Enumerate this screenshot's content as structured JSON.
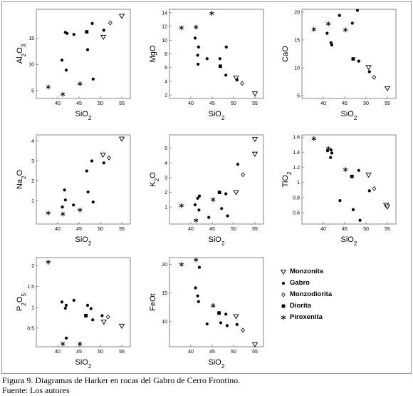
{
  "caption": {
    "figure": "Figura 9. Diagramas de Harker en rocas del Gabro de Cerro Frontino.",
    "source": "Fuente: Los autores"
  },
  "legend": {
    "items": [
      {
        "label": "Monzonita",
        "symbol": "triangle"
      },
      {
        "label": "Gabro",
        "symbol": "dot"
      },
      {
        "label": "Monzodiorita",
        "symbol": "diamond"
      },
      {
        "label": "Diorita",
        "symbol": "square"
      },
      {
        "label": "Piroxenita",
        "symbol": "asterisk"
      }
    ]
  },
  "chart_data": [
    {
      "type": "scatter",
      "xlabel": "SiO2",
      "ylabel": "Al2O3",
      "xlim": [
        35,
        57
      ],
      "xticks": [
        40,
        45,
        50,
        55
      ],
      "ylim": [
        3.5,
        20.5
      ],
      "yticks": [
        5,
        10,
        15
      ],
      "points": [
        {
          "x": 37.8,
          "y": 5.7,
          "s": "asterisk"
        },
        {
          "x": 41.2,
          "y": 4.3,
          "s": "asterisk"
        },
        {
          "x": 45.2,
          "y": 6.3,
          "s": "asterisk"
        },
        {
          "x": 41.0,
          "y": 10.8,
          "s": "dot"
        },
        {
          "x": 42.0,
          "y": 8.9,
          "s": "dot"
        },
        {
          "x": 41.8,
          "y": 16.1,
          "s": "dot"
        },
        {
          "x": 42.2,
          "y": 15.9,
          "s": "dot"
        },
        {
          "x": 43.8,
          "y": 15.7,
          "s": "dot"
        },
        {
          "x": 47.0,
          "y": 12.8,
          "s": "dot"
        },
        {
          "x": 48.3,
          "y": 7.2,
          "s": "dot"
        },
        {
          "x": 48.1,
          "y": 17.8,
          "s": "dot"
        },
        {
          "x": 46.8,
          "y": 16.2,
          "s": "square"
        },
        {
          "x": 50.8,
          "y": 16.5,
          "s": "dot"
        },
        {
          "x": 52.3,
          "y": 17.9,
          "s": "diamond"
        },
        {
          "x": 50.7,
          "y": 15.2,
          "s": "triangle"
        },
        {
          "x": 55.0,
          "y": 19.2,
          "s": "triangle"
        }
      ]
    },
    {
      "type": "scatter",
      "xlabel": "SiO2",
      "ylabel": "MgO",
      "xlim": [
        35,
        57
      ],
      "xticks": [
        40,
        45,
        50,
        55
      ],
      "ylim": [
        1.5,
        14.5
      ],
      "yticks": [
        2,
        4,
        6,
        8,
        10,
        12,
        14
      ],
      "points": [
        {
          "x": 37.8,
          "y": 11.8,
          "s": "asterisk"
        },
        {
          "x": 41.2,
          "y": 11.9,
          "s": "asterisk"
        },
        {
          "x": 44.9,
          "y": 13.9,
          "s": "asterisk"
        },
        {
          "x": 41.0,
          "y": 10.3,
          "s": "dot"
        },
        {
          "x": 41.8,
          "y": 9.0,
          "s": "dot"
        },
        {
          "x": 41.6,
          "y": 7.8,
          "s": "dot"
        },
        {
          "x": 41.7,
          "y": 6.5,
          "s": "dot"
        },
        {
          "x": 43.8,
          "y": 7.3,
          "s": "dot"
        },
        {
          "x": 46.8,
          "y": 7.3,
          "s": "dot"
        },
        {
          "x": 46.9,
          "y": 6.2,
          "s": "square"
        },
        {
          "x": 48.3,
          "y": 9.0,
          "s": "dot"
        },
        {
          "x": 48.2,
          "y": 4.9,
          "s": "dot"
        },
        {
          "x": 50.6,
          "y": 4.5,
          "s": "triangle"
        },
        {
          "x": 50.8,
          "y": 4.2,
          "s": "dot"
        },
        {
          "x": 52.0,
          "y": 3.7,
          "s": "diamond"
        },
        {
          "x": 55.0,
          "y": 2.2,
          "s": "triangle"
        }
      ]
    },
    {
      "type": "scatter",
      "xlabel": "SiO2",
      "ylabel": "CaO",
      "xlim": [
        35,
        57
      ],
      "xticks": [
        40,
        45,
        50,
        55
      ],
      "ylim": [
        4.5,
        20.5
      ],
      "yticks": [
        5,
        10,
        15,
        20
      ],
      "points": [
        {
          "x": 37.8,
          "y": 16.9,
          "s": "asterisk"
        },
        {
          "x": 41.2,
          "y": 17.9,
          "s": "asterisk"
        },
        {
          "x": 45.2,
          "y": 16.8,
          "s": "asterisk"
        },
        {
          "x": 40.9,
          "y": 16.2,
          "s": "dot"
        },
        {
          "x": 41.8,
          "y": 14.5,
          "s": "dot"
        },
        {
          "x": 42.0,
          "y": 14.1,
          "s": "dot"
        },
        {
          "x": 43.8,
          "y": 19.4,
          "s": "dot"
        },
        {
          "x": 46.8,
          "y": 18.0,
          "s": "dot"
        },
        {
          "x": 48.0,
          "y": 20.3,
          "s": "dot"
        },
        {
          "x": 47.0,
          "y": 11.6,
          "s": "square"
        },
        {
          "x": 48.3,
          "y": 11.2,
          "s": "dot"
        },
        {
          "x": 50.6,
          "y": 10.1,
          "s": "triangle"
        },
        {
          "x": 50.8,
          "y": 9.3,
          "s": "dot"
        },
        {
          "x": 51.9,
          "y": 8.3,
          "s": "diamond"
        },
        {
          "x": 55.0,
          "y": 6.3,
          "s": "triangle"
        }
      ]
    },
    {
      "type": "scatter",
      "xlabel": "SiO2",
      "ylabel": "Na2O",
      "xlim": [
        35,
        57
      ],
      "xticks": [
        40,
        45,
        50,
        55
      ],
      "ylim": [
        -0.15,
        4.3
      ],
      "yticks": [
        1,
        2,
        3,
        4
      ],
      "points": [
        {
          "x": 37.8,
          "y": 0.4,
          "s": "asterisk"
        },
        {
          "x": 41.2,
          "y": 0.35,
          "s": "asterisk"
        },
        {
          "x": 45.2,
          "y": 0.55,
          "s": "asterisk"
        },
        {
          "x": 41.1,
          "y": 0.7,
          "s": "dot"
        },
        {
          "x": 41.8,
          "y": 1.05,
          "s": "dot"
        },
        {
          "x": 41.6,
          "y": 1.55,
          "s": "dot"
        },
        {
          "x": 43.7,
          "y": 0.8,
          "s": "dot"
        },
        {
          "x": 46.8,
          "y": 2.5,
          "s": "dot"
        },
        {
          "x": 47.1,
          "y": 1.45,
          "s": "dot"
        },
        {
          "x": 48.3,
          "y": 0.95,
          "s": "dot"
        },
        {
          "x": 48.0,
          "y": 3.0,
          "s": "dot"
        },
        {
          "x": 50.6,
          "y": 3.3,
          "s": "triangle"
        },
        {
          "x": 50.8,
          "y": 2.9,
          "s": "dot"
        },
        {
          "x": 52.0,
          "y": 3.15,
          "s": "diamond"
        },
        {
          "x": 55.0,
          "y": 4.1,
          "s": "triangle"
        }
      ]
    },
    {
      "type": "scatter",
      "xlabel": "SiO2",
      "ylabel": "K2O",
      "xlim": [
        35,
        57
      ],
      "xticks": [
        40,
        45,
        50,
        55
      ],
      "ylim": [
        -0.15,
        5.9
      ],
      "yticks": [
        1,
        2,
        3,
        4,
        5
      ],
      "points": [
        {
          "x": 37.8,
          "y": 1.1,
          "s": "asterisk"
        },
        {
          "x": 41.2,
          "y": 0.1,
          "s": "asterisk"
        },
        {
          "x": 45.2,
          "y": 1.5,
          "s": "asterisk"
        },
        {
          "x": 41.0,
          "y": 1.15,
          "s": "dot"
        },
        {
          "x": 41.6,
          "y": 1.6,
          "s": "dot"
        },
        {
          "x": 42.0,
          "y": 1.75,
          "s": "dot"
        },
        {
          "x": 41.9,
          "y": 0.8,
          "s": "dot"
        },
        {
          "x": 44.2,
          "y": 0.3,
          "s": "dot"
        },
        {
          "x": 46.7,
          "y": 2.0,
          "s": "square"
        },
        {
          "x": 47.2,
          "y": 0.9,
          "s": "dot"
        },
        {
          "x": 48.2,
          "y": 1.9,
          "s": "dot"
        },
        {
          "x": 48.6,
          "y": 0.4,
          "s": "dot"
        },
        {
          "x": 50.6,
          "y": 2.0,
          "s": "triangle"
        },
        {
          "x": 51.0,
          "y": 3.9,
          "s": "dot"
        },
        {
          "x": 52.2,
          "y": 3.2,
          "s": "diamond"
        },
        {
          "x": 55.0,
          "y": 4.6,
          "s": "triangle"
        },
        {
          "x": 55.0,
          "y": 5.6,
          "s": "triangle"
        }
      ]
    },
    {
      "type": "scatter",
      "xlabel": "SiO2",
      "ylabel": "TiO2",
      "xlim": [
        35,
        57
      ],
      "xticks": [
        40,
        45,
        50,
        55
      ],
      "ylim": [
        0.45,
        1.63
      ],
      "yticks": [
        0.6,
        0.8,
        1.0,
        1.2,
        1.4,
        1.6
      ],
      "points": [
        {
          "x": 37.8,
          "y": 1.58,
          "s": "asterisk"
        },
        {
          "x": 41.2,
          "y": 1.45,
          "s": "asterisk"
        },
        {
          "x": 45.2,
          "y": 1.17,
          "s": "asterisk"
        },
        {
          "x": 41.0,
          "y": 1.42,
          "s": "dot"
        },
        {
          "x": 41.8,
          "y": 1.43,
          "s": "dot"
        },
        {
          "x": 42.0,
          "y": 1.39,
          "s": "dot"
        },
        {
          "x": 41.7,
          "y": 1.33,
          "s": "dot"
        },
        {
          "x": 43.9,
          "y": 0.76,
          "s": "dot"
        },
        {
          "x": 46.7,
          "y": 1.08,
          "s": "square"
        },
        {
          "x": 47.0,
          "y": 0.64,
          "s": "dot"
        },
        {
          "x": 48.3,
          "y": 1.16,
          "s": "dot"
        },
        {
          "x": 48.6,
          "y": 0.5,
          "s": "dot"
        },
        {
          "x": 50.6,
          "y": 1.1,
          "s": "triangle"
        },
        {
          "x": 50.8,
          "y": 0.89,
          "s": "dot"
        },
        {
          "x": 51.9,
          "y": 0.92,
          "s": "diamond"
        },
        {
          "x": 54.7,
          "y": 0.7,
          "s": "triangle"
        },
        {
          "x": 55.0,
          "y": 0.68,
          "s": "triangle"
        }
      ]
    },
    {
      "type": "scatter",
      "xlabel": "SiO2",
      "ylabel": "P2O5",
      "xlim": [
        35,
        57
      ],
      "xticks": [
        40,
        45,
        50,
        55
      ],
      "ylim": [
        0.05,
        2.2
      ],
      "yticks": [
        0.5,
        1.0,
        1.5,
        2.0
      ],
      "points": [
        {
          "x": 37.8,
          "y": 2.09,
          "s": "asterisk"
        },
        {
          "x": 41.2,
          "y": 0.12,
          "s": "asterisk"
        },
        {
          "x": 45.2,
          "y": 0.12,
          "s": "asterisk"
        },
        {
          "x": 41.0,
          "y": 1.13,
          "s": "dot"
        },
        {
          "x": 41.8,
          "y": 0.98,
          "s": "dot"
        },
        {
          "x": 42.0,
          "y": 1.05,
          "s": "dot"
        },
        {
          "x": 42.0,
          "y": 0.26,
          "s": "dot"
        },
        {
          "x": 43.8,
          "y": 1.17,
          "s": "dot"
        },
        {
          "x": 46.6,
          "y": 0.8,
          "s": "square"
        },
        {
          "x": 47.0,
          "y": 1.05,
          "s": "dot"
        },
        {
          "x": 47.8,
          "y": 0.97,
          "s": "dot"
        },
        {
          "x": 48.2,
          "y": 0.7,
          "s": "dot"
        },
        {
          "x": 50.4,
          "y": 0.8,
          "s": "dot"
        },
        {
          "x": 50.8,
          "y": 0.65,
          "s": "triangle"
        },
        {
          "x": 51.8,
          "y": 0.77,
          "s": "diamond"
        },
        {
          "x": 55.0,
          "y": 0.55,
          "s": "triangle"
        }
      ]
    },
    {
      "type": "scatter",
      "xlabel": "SiO2",
      "ylabel": "FeOt",
      "xlim": [
        35,
        57
      ],
      "xticks": [
        40,
        45,
        50,
        55
      ],
      "ylim": [
        5.6,
        21.2
      ],
      "yticks": [
        10,
        15,
        20
      ],
      "points": [
        {
          "x": 37.8,
          "y": 20.0,
          "s": "asterisk"
        },
        {
          "x": 41.2,
          "y": 20.8,
          "s": "asterisk"
        },
        {
          "x": 45.2,
          "y": 12.8,
          "s": "asterisk"
        },
        {
          "x": 42.0,
          "y": 19.5,
          "s": "dot"
        },
        {
          "x": 41.1,
          "y": 15.9,
          "s": "dot"
        },
        {
          "x": 41.6,
          "y": 14.5,
          "s": "dot"
        },
        {
          "x": 41.8,
          "y": 13.5,
          "s": "dot"
        },
        {
          "x": 43.8,
          "y": 9.6,
          "s": "dot"
        },
        {
          "x": 46.6,
          "y": 11.5,
          "s": "square"
        },
        {
          "x": 47.0,
          "y": 9.8,
          "s": "dot"
        },
        {
          "x": 48.2,
          "y": 11.3,
          "s": "dot"
        },
        {
          "x": 48.5,
          "y": 9.3,
          "s": "dot"
        },
        {
          "x": 50.6,
          "y": 10.9,
          "s": "triangle"
        },
        {
          "x": 50.8,
          "y": 9.5,
          "s": "dot"
        },
        {
          "x": 52.2,
          "y": 8.5,
          "s": "diamond"
        },
        {
          "x": 55.0,
          "y": 6.0,
          "s": "triangle"
        }
      ]
    }
  ]
}
